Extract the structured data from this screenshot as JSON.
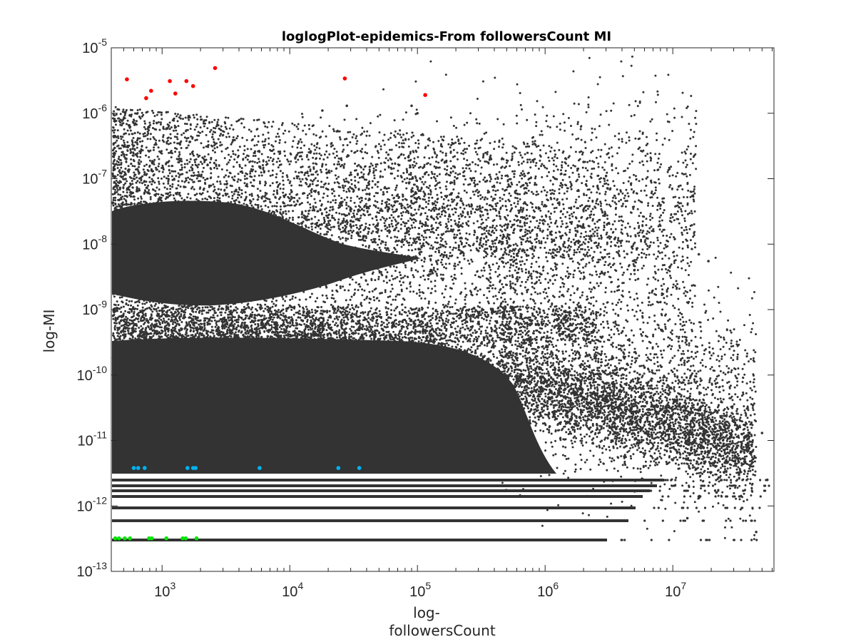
{
  "chart_data": {
    "type": "scatter",
    "title": "loglogPlot-epidemics-From followersCount MI",
    "xlabel_lines": [
      "log-",
      "followersCount"
    ],
    "ylabel": "log-MI",
    "x_scale": "log",
    "y_scale": "log",
    "xlim": [
      400,
      62000000
    ],
    "ylim": [
      1e-13,
      1e-05
    ],
    "x_ticks": [
      {
        "value": 1000,
        "base": "10",
        "exp": "3"
      },
      {
        "value": 10000,
        "base": "10",
        "exp": "4"
      },
      {
        "value": 100000,
        "base": "10",
        "exp": "5"
      },
      {
        "value": 1000000,
        "base": "10",
        "exp": "6"
      },
      {
        "value": 10000000,
        "base": "10",
        "exp": "7"
      }
    ],
    "y_ticks": [
      {
        "value": 1e-13,
        "base": "10",
        "exp": "-13"
      },
      {
        "value": 1e-12,
        "base": "10",
        "exp": "-12"
      },
      {
        "value": 1e-11,
        "base": "10",
        "exp": "-11"
      },
      {
        "value": 1e-10,
        "base": "10",
        "exp": "-10"
      },
      {
        "value": 1e-09,
        "base": "10",
        "exp": "-9"
      },
      {
        "value": 1e-08,
        "base": "10",
        "exp": "-8"
      },
      {
        "value": 1e-07,
        "base": "10",
        "exp": "-7"
      },
      {
        "value": 1e-06,
        "base": "10",
        "exp": "-6"
      },
      {
        "value": 1e-05,
        "base": "10",
        "exp": "-5"
      }
    ],
    "grid": false,
    "legend": "none",
    "series": [
      {
        "color": "#333333",
        "description": "dense cloud of background points",
        "values": [
          [
            2000000,
            1.8e-07
          ],
          [
            3000000,
            1.1e-07
          ],
          [
            3500000,
            1.2e-08
          ],
          [
            5000000,
            4e-09
          ],
          [
            8000000,
            1.3e-09
          ],
          [
            16000000,
            7e-09
          ],
          [
            19000000,
            5.5e-09
          ],
          [
            6000000,
            1.3e-10
          ],
          [
            30000000,
            1.1e-11
          ],
          [
            50000000,
            1.3e-11
          ],
          [
            55000000,
            2.5e-12
          ],
          [
            22000000,
            1.6e-12
          ],
          [
            13000000,
            6.5e-13
          ],
          [
            45000000,
            4e-13
          ],
          [
            33000000,
            3e-12
          ],
          [
            100000,
            1e-06
          ],
          [
            90000,
            1.3e-06
          ],
          [
            28000,
            1.3e-06
          ],
          [
            18000,
            1.1e-06
          ]
        ]
      },
      {
        "color": "#ff0000",
        "description": "red highlighted points",
        "values": [
          [
            530,
            3.3e-06
          ],
          [
            750,
            1.7e-06
          ],
          [
            820,
            2.2e-06
          ],
          [
            1150,
            3.1e-06
          ],
          [
            1270,
            2e-06
          ],
          [
            1550,
            3.1e-06
          ],
          [
            1750,
            2.6e-06
          ],
          [
            2600,
            4.9e-06
          ],
          [
            27000,
            3.4e-06
          ],
          [
            115000,
            1.9e-06
          ]
        ]
      },
      {
        "color": "#00b3f0",
        "description": "blue highlighted points",
        "values": [
          [
            600,
            3.8e-12
          ],
          [
            650,
            3.8e-12
          ],
          [
            730,
            3.8e-12
          ],
          [
            1580,
            3.8e-12
          ],
          [
            1750,
            3.8e-12
          ],
          [
            1830,
            3.8e-12
          ],
          [
            5800,
            3.8e-12
          ],
          [
            24000,
            3.8e-12
          ],
          [
            35000,
            3.8e-12
          ]
        ]
      },
      {
        "color": "#00e600",
        "description": "green highlighted points",
        "values": [
          [
            430,
            3.2e-13
          ],
          [
            460,
            3.2e-13
          ],
          [
            510,
            3.2e-13
          ],
          [
            560,
            3.2e-13
          ],
          [
            790,
            3.2e-13
          ],
          [
            830,
            3.2e-13
          ],
          [
            1080,
            3.2e-13
          ],
          [
            1450,
            3.2e-13
          ],
          [
            1530,
            3.2e-13
          ],
          [
            1860,
            3.2e-13
          ]
        ]
      }
    ]
  }
}
